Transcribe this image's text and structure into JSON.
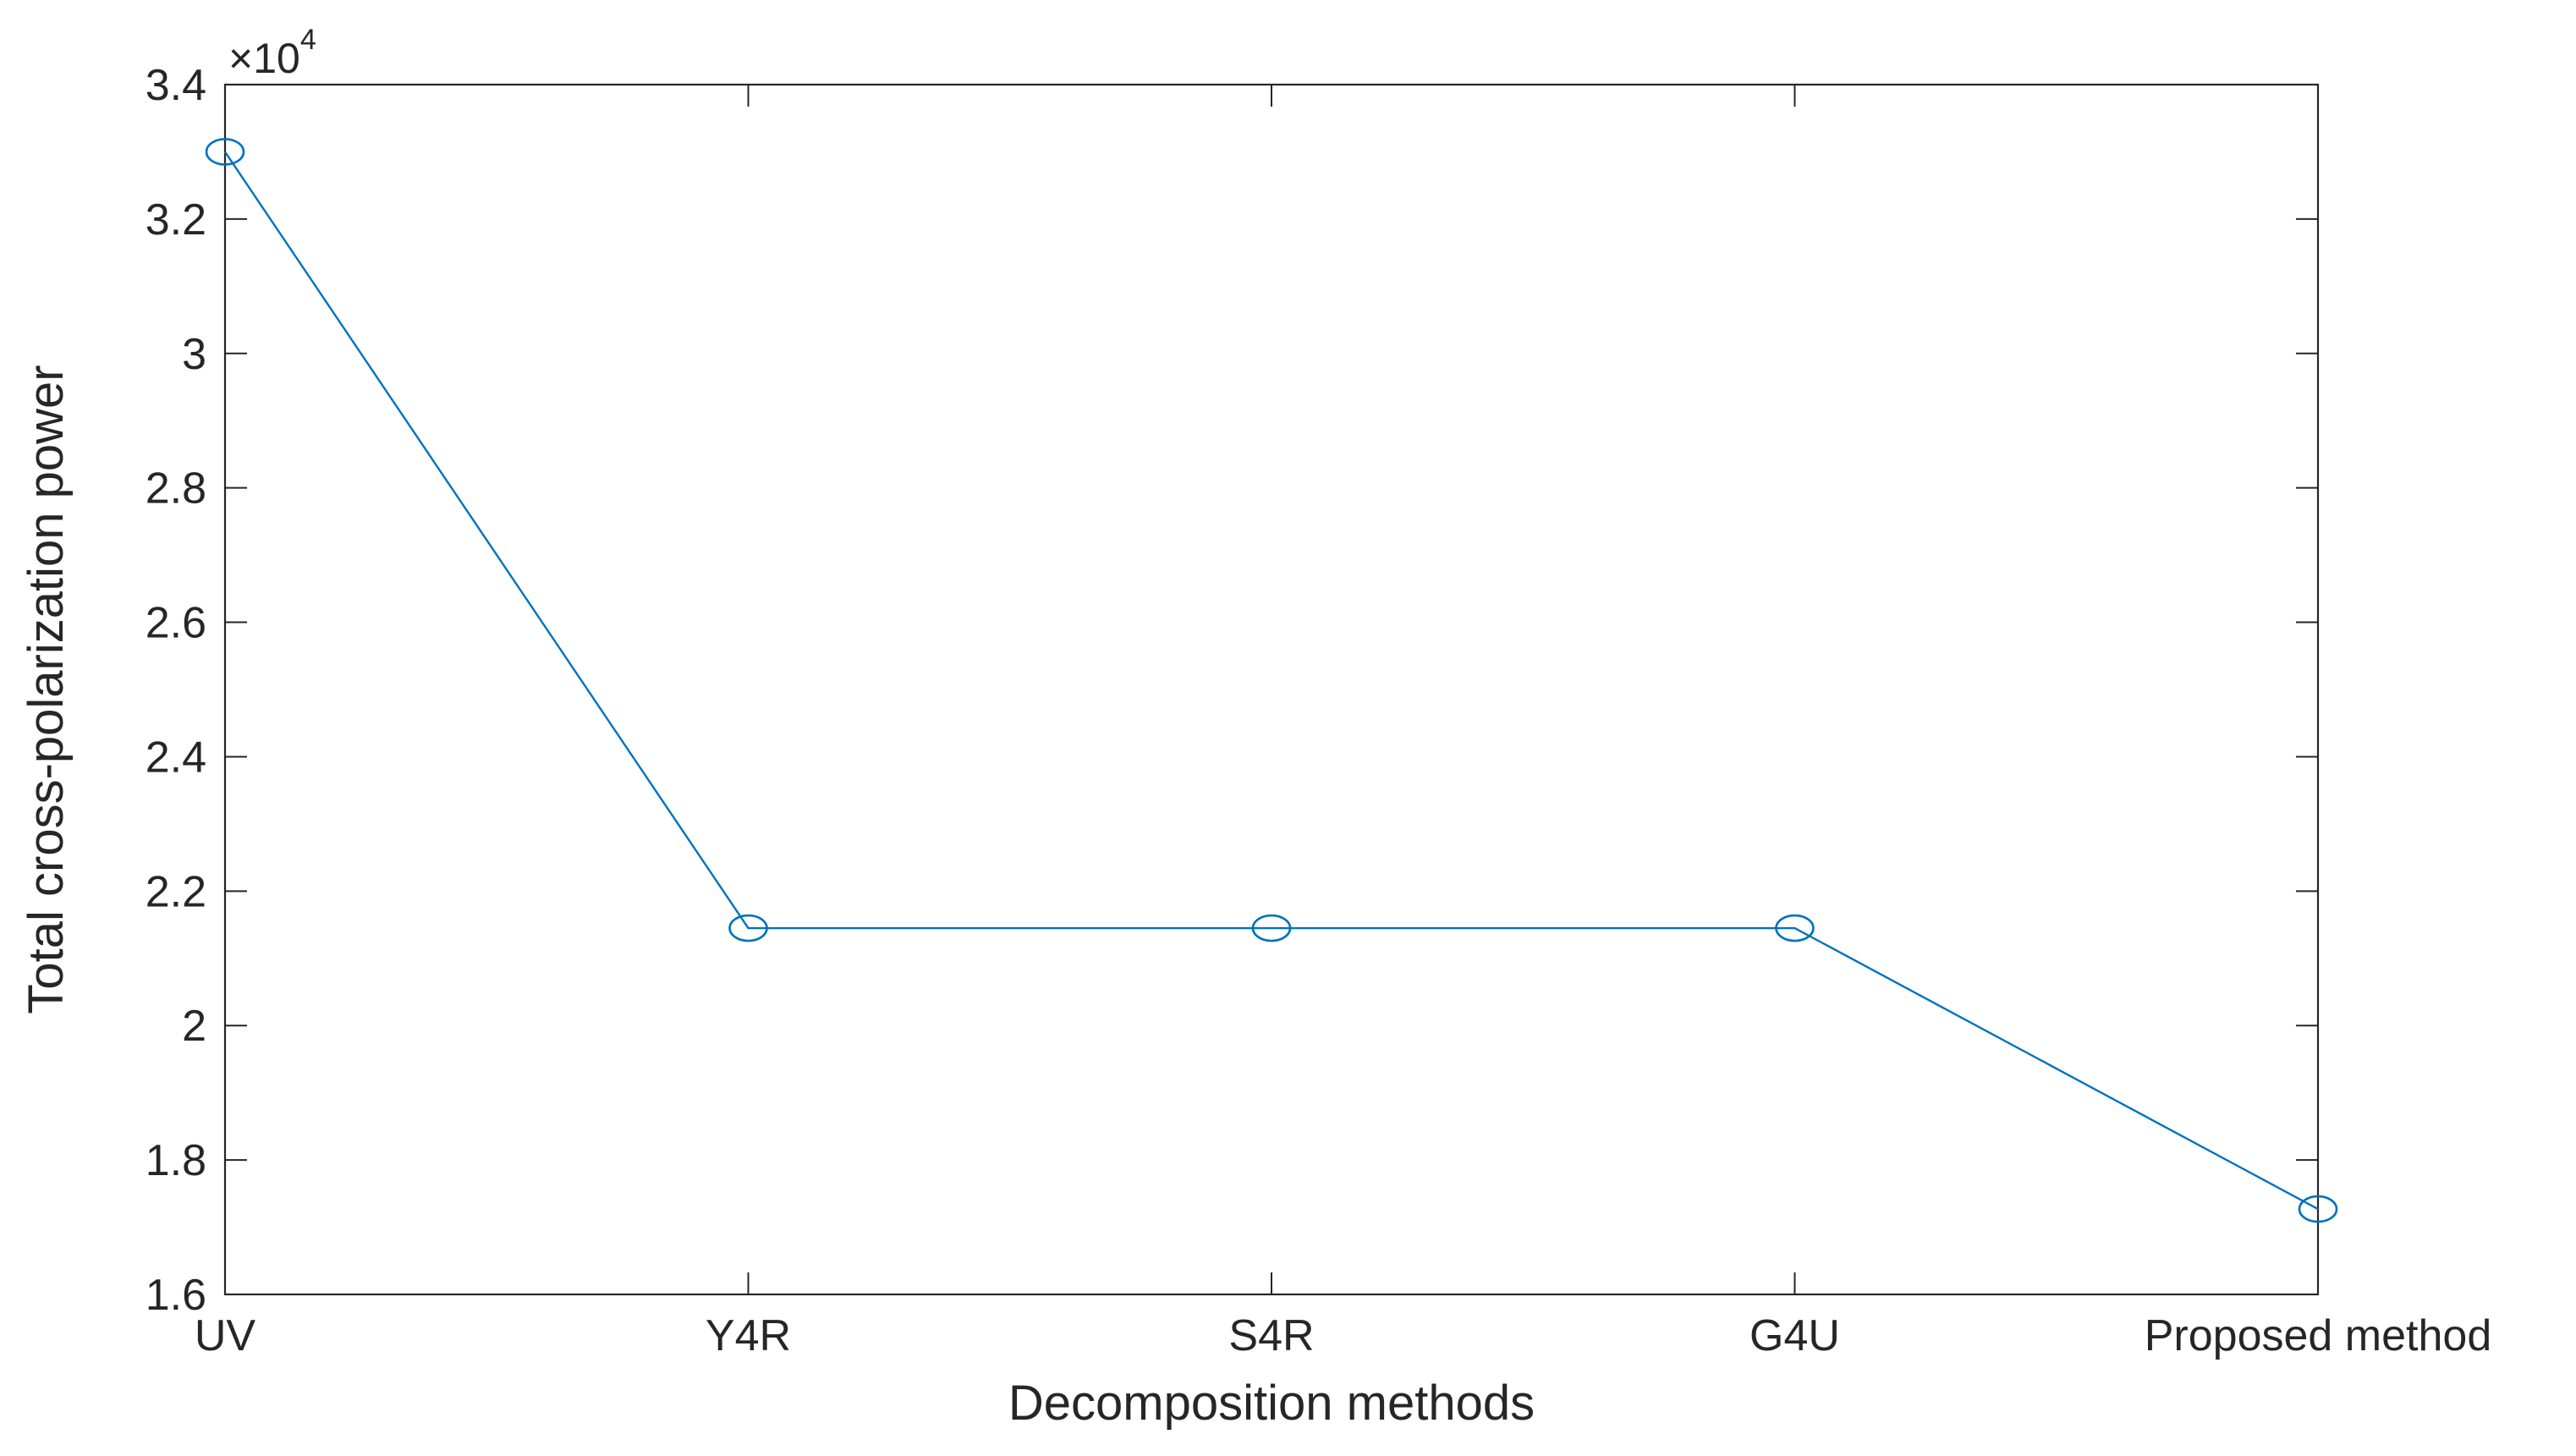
{
  "chart_data": {
    "type": "line",
    "categories": [
      "UV",
      "Y4R",
      "S4R",
      "G4U",
      "Proposed method"
    ],
    "series": [
      {
        "values": [
          33000,
          21450,
          21450,
          21450,
          17270
        ],
        "color": "#0072BD",
        "marker": "circle"
      }
    ],
    "xlabel": "Decomposition methods",
    "ylabel": "Total cross-polarization power",
    "ylim": [
      16000,
      34000
    ],
    "yticks": [
      16000,
      18000,
      20000,
      22000,
      24000,
      26000,
      28000,
      30000,
      32000,
      34000
    ],
    "ytick_labels": [
      "1.6",
      "1.8",
      "2",
      "2.2",
      "2.4",
      "2.6",
      "2.8",
      "3",
      "3.2",
      "3.4"
    ],
    "y_exponent": {
      "prefix": "×10",
      "power": "4"
    },
    "grid": false,
    "box": true
  }
}
